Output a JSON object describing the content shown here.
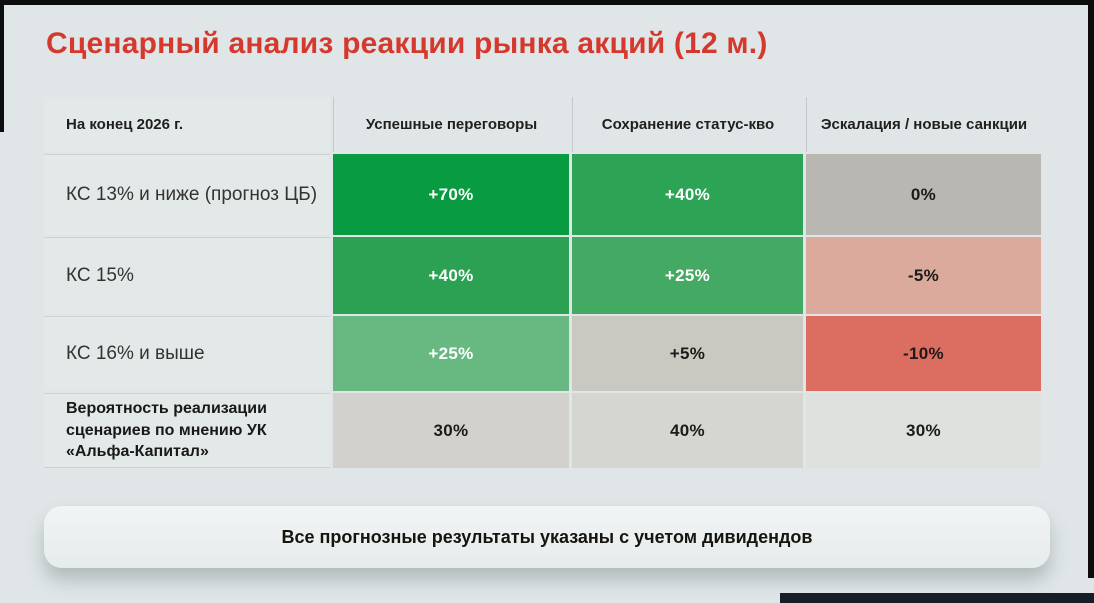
{
  "slide": {
    "title": "Сценарный анализ реакции рынка акций (12 м.)",
    "footnote": "Все прогнозные результаты указаны с учетом дивидендов"
  },
  "colors": {
    "title": "#d5392d",
    "page_bg": "#e0e6e7",
    "frame": "#0d0d0d",
    "bottom_bar": "#161d27",
    "positive_strong": "#089b41",
    "positive_medium": "#2da455",
    "positive_light": "#67b981",
    "neutral_gray": "#b9b7b2",
    "negative_mild": "#dcaa9d",
    "negative_strong": "#dc6e61"
  },
  "matrix": {
    "corner_header": "На конец 2026 г.",
    "col_headers": [
      "Успешные переговоры",
      "Сохранение статус-кво",
      "Эскалация / новые санкции"
    ],
    "rows": [
      {
        "label": "КС 13% и ниже (прогноз ЦБ)",
        "cells": [
          {
            "value": "+70%",
            "bg": "#089b41",
            "fg": "#ffffff"
          },
          {
            "value": "+40%",
            "bg": "#2da455",
            "fg": "#ffffff"
          },
          {
            "value": "0%",
            "bg": "#b9b7b2",
            "fg": "#1b1b19"
          }
        ]
      },
      {
        "label": "КС 15%",
        "cells": [
          {
            "value": "+40%",
            "bg": "#2ca153",
            "fg": "#ffffff"
          },
          {
            "value": "+25%",
            "bg": "#44a963",
            "fg": "#ffffff"
          },
          {
            "value": "-5%",
            "bg": "#dcaa9d",
            "fg": "#1b1b19"
          }
        ]
      },
      {
        "label": "КС 16% и выше",
        "cells": [
          {
            "value": "+25%",
            "bg": "#67b981",
            "fg": "#ffffff"
          },
          {
            "value": "+5%",
            "bg": "#c9c8c1",
            "fg": "#1b1b19"
          },
          {
            "value": "-10%",
            "bg": "#dc6e61",
            "fg": "#1b1b19"
          }
        ]
      },
      {
        "label": "Вероятность реализации сценариев по мнению УК «Альфа-Капитал»",
        "cells": [
          {
            "value": "30%",
            "bg": "#d2d1cb",
            "fg": "#1b1b19"
          },
          {
            "value": "40%",
            "bg": "#d5d6d0",
            "fg": "#1b1b19"
          },
          {
            "value": "30%",
            "bg": "#dfe1de",
            "fg": "#1b1b19"
          }
        ]
      }
    ]
  },
  "chart_data": {
    "type": "table",
    "title": "Сценарный анализ реакции рынка акций (12 м.)",
    "row_header": "На конец 2026 г.",
    "columns": [
      "Успешные переговоры",
      "Сохранение статус-кво",
      "Эскалация / новые санкции"
    ],
    "rows": [
      "КС 13% и ниже (прогноз ЦБ)",
      "КС 15%",
      "КС 16% и выше",
      "Вероятность реализации сценариев по мнению УК «Альфа-Капитал»"
    ],
    "values": [
      [
        "+70%",
        "+40%",
        "0%"
      ],
      [
        "+40%",
        "+25%",
        "-5%"
      ],
      [
        "+25%",
        "+5%",
        "-10%"
      ],
      [
        "30%",
        "40%",
        "30%"
      ]
    ],
    "note": "Все прогнозные результаты указаны с учетом дивидендов"
  }
}
